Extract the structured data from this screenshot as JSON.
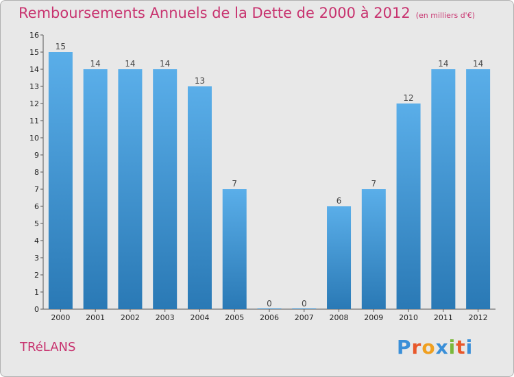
{
  "page": {
    "title": "Remboursements Annuels de la Dette de 2000 à 2012",
    "subtitle": "(en milliers d'€)",
    "commune": "TRéLANS",
    "logo_text": "Proxiti"
  },
  "colors": {
    "accent": "#c8336f",
    "bar_top": "#5aaee9",
    "bar_bottom": "#2a79b5",
    "background": "#e8e8e8",
    "logo_letters": [
      "#3a8fd8",
      "#e8582b",
      "#f0a020",
      "#3a8fd8",
      "#7ab83a",
      "#e8582b",
      "#3a8fd8"
    ]
  },
  "chart_data": {
    "type": "bar",
    "title": "Remboursements Annuels de la Dette de 2000 à 2012",
    "subtitle": "(en milliers d'€)",
    "xlabel": "",
    "ylabel": "",
    "categories": [
      "2000",
      "2001",
      "2002",
      "2003",
      "2004",
      "2005",
      "2006",
      "2007",
      "2008",
      "2009",
      "2010",
      "2011",
      "2012"
    ],
    "values": [
      15,
      14,
      14,
      14,
      13,
      7,
      0,
      0,
      6,
      7,
      12,
      14,
      14
    ],
    "ylim": [
      0,
      16
    ],
    "yticks": [
      0,
      1,
      2,
      3,
      4,
      5,
      6,
      7,
      8,
      9,
      10,
      11,
      12,
      13,
      14,
      15,
      16
    ],
    "grid": false,
    "legend": "none"
  }
}
